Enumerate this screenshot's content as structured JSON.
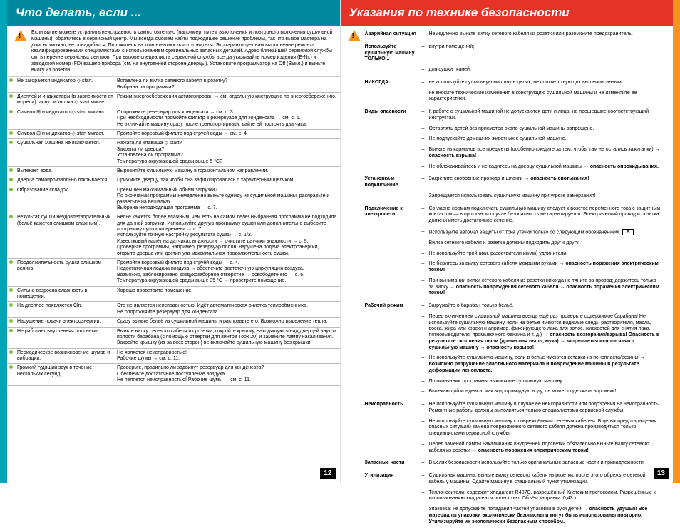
{
  "left": {
    "title": "Что делать, если ...",
    "intro": "Если вы не можете устранить неисправность самостоятельно (например, путем выключения и повторного включения сушильной машины), обратитесь в сервисный центр. Мы всегда сможем найти подходящее решение проблемы, так что вызов мастера на дом, возможно, не понадобится. Положитесь на компетентность изготовителя. Это гарантирует вам выполнение ремонта квалифицированными специалистами с использованием оригинальных запасных деталей. Адрес ближайшей сервисной службы см. в перечне сервисных центров. При вызове специалиста сервисной службы всегда указывайте номер изделия (E-Nr.) и заводской номер (FD) вашего прибора (см. на внутренней стороне дверцы). Установите программатор на Off (Выкл.) и выньте вилку из розетки.",
    "rows": [
      {
        "p": "Не загорается индикатор ◇ start.",
        "s": "Вставлена ли вилка сетевого кабеля в розетку?\nВыбрана ли программа?"
      },
      {
        "p": "Дисплей и индикаторы (в зависимости от модели) гаснут и кнопка ◇ start мигает.",
        "s": "Режим энергосбережения активизирован → см. отдельную инструкцию по энергосбережению."
      },
      {
        "p": "Символ ⊞ и индикатор ◇ start мигают.",
        "s": "Опорожните резервуар для конденсата → см. с. 3.\nПри необходимости промойте фильтр в резервуаре для конденсата → см. с. 6.\nНе включайте машину сразу после транспортировки: дайте ей постоять два часа."
      },
      {
        "p": "Символ ⊟ и индикатор ◇ start мигает.",
        "s": "Промойте ворсовый фильтр под струей воды → см. с. 4."
      },
      {
        "p": "Сушильная машина не включается.",
        "s": "Нажата ли клавиша ◇ start?\nЗакрыта ли дверца?\nУстановлена ли программа?\nТемпература окружающей среды выше 5 °C?"
      },
      {
        "p": "Вытекает вода.",
        "s": "Выровняйте сушильную машину в горизонтальном направлении."
      },
      {
        "p": "Дверца самопроизвольно открывается.",
        "s": "Прижмите дверцу, так чтобы она зафиксировалась с характерным щелчком."
      },
      {
        "p": "Образование складок.",
        "s": "Превышен максимальный объём загрузки?\nПо окончании программы немедленно выньте одежду из сушильной машины, расправьте и развесьте на вешалках.\nВыбрана неподходящая программа → с. 7."
      },
      {
        "p": "Результат сушки неудовлетворительный (бельё кажется слишком влажным).",
        "s": "Бельё кажется более влажным, чем есть на самом деле! Выбранная программа не подходила для данной загрузки. Используйте другую программу сушки или дополнительно выберите программу сушки по времени → с. 7.\nИспользуйте точную настройку результата сушки → с. 1/2.\nИзвестковый налёт на датчиках влажности → очистите датчики влажности → с. 9.\nПроверьте программы, например, резервуар полон, нарушена подача электроэнергии, открыта дверца или достигнута максимальная продолжительность сушки."
      },
      {
        "p": "Продолжительность сушки слишком велика.",
        "s": "Промойте ворсовый фильтр под струёй воды → с. 4.\nНедостаточная подача воздуха → обеспечьте достаточную циркуляцию воздуха.\nВозможно, заблокировано воздухозаборное отверстие → освободите его → с. 6.\nТемпература окружающей среды выше 35 °C → проветрите помещение."
      },
      {
        "p": "Сильно возросла влажность в помещении.",
        "s": "Хорошо проветрите помещение."
      },
      {
        "p": "На дисплее появляется Cln.",
        "s": "Это не является неисправностью! Идёт автоматическая очистка теплообменника.\nНе опорожняйте резервуар для конденсата."
      },
      {
        "p": "Нарушение подачи электроэнергии.",
        "s": "Сразу выньте бельё из сушильной машины и расправьте его. Возможно выделение тепла."
      },
      {
        "p": "Не работает внутренняя подсветка.",
        "s": "Выньте вилку сетевого кабеля из розетки, откройте крышку, находящуюся над дверцей внутри полости барабана (с помощью отвёртки для винтов Торх 20) и замените лампу накаливания. Закройте крышку (из-за всех сторон) не включайте сушильную машину без крышки!"
      },
      {
        "p": "Периодическое возникновение шумов и вибрации.",
        "s": "Не является неисправностью!\nРабочие шумы → см. с. 11."
      },
      {
        "p": "Громкий гудящий звук в течение нескольких секунд.",
        "s": "Проверьте, правильно ли задвинут резервуар для конденсата?\nОбеспечьте достаточное поступление воздуха.\nНе является неисправностью! Рабочие шумы → см. с. 11."
      }
    ],
    "pageNum": "12"
  },
  "right": {
    "title": "Указания по технике безопасности",
    "sections": [
      {
        "label": "Аварийная ситуация",
        "items": [
          "Немедленно выньте вилку сетевого кабеля из розетки или разомкните предохранитель."
        ]
      },
      {
        "label": "Используйте сушильную машину ТОЛЬКО...",
        "items": [
          "внутри помещений;",
          "для сушки тканей."
        ]
      },
      {
        "label": "НИКОГДА...",
        "items": [
          "не используйте сушильную машину в целях, не соответствующих вышеописанным;",
          "не вносите технические изменения в конструкцию сушильной машины и не изменяйте её характеристики."
        ]
      },
      {
        "label": "Виды опасности",
        "items": [
          "К работе с сушильной машиной не допускаются дети и лица, не прошедшие соответствующий инструктаж.",
          "Оставлять детей без присмотра около сушильной машины запрещено.",
          "Не подпускайте домашних животных к сушильной машине.",
          "Выньте из карманов все предметы (особенно следите за тем, чтобы там не остались зажигалки) → опасность взрыва!",
          "Не облокачивайтесь и не садитесь на дверцу сушильной машины → опасность опрокидывания."
        ]
      },
      {
        "label": "Установка и подключение",
        "items": [
          "Закрепите свободные провода и шланги → опасность спотыкания!",
          "Запрещается использовать сушильную машину при угрозе замерзания!"
        ]
      },
      {
        "label": "Подключение к электросети",
        "items": [
          "Согласно нормам подключать сушильную машину следует к розетке переменного тока с защитным контактом — в противном случае безопасность не гарантируется. Электрический провод и розетка должны иметь достаточное сечение.",
          "Используйте автомат защиты от тока утечки только со следующим обозначением:",
          "Вилка сетевого кабеля и розетка должны подходить друг к другу.",
          "Не используйте тройники, разветвители и(или) удлинители.",
          "Не беритесь за вилку сетевого кабеля мокрыми руками → опасность поражения электрическим током!",
          "При вынимании вилки сетевого кабеля из розетки никогда не тяните за провод; держитесь только за вилку → опасность повреждения сетевого кабеля → опасность поражения электрическим током!"
        ]
      },
      {
        "label": "Рабочий режим",
        "items": [
          "Загружайте в барабан только бельё.",
          "Перед включением сушильной машины всегда ещё раз проверьте содержимое барабана! Не используйте сушильную машину, если на белье имеются видимые следы растворителя, масла, воска, жира или краски (например, фиксирующего лака для волос, жидкостей для снятия лака, пятновыводителя, промывочного бензина и т. д.) → опасность возгорания/взрыва! Опасность в результате скопления пыли (древесная пыль, мука) → запрещается использовать сушильную машину → опасность взрыва!",
          "Не используйте сушильную машину, если в белье имеются вставки из пенопласта/резины → возможно разрушение эластичного материала и повреждение машины в результате деформации пенопласта.",
          "По окончании программы выключите сушильную машину.",
          "Вытекающий конденсат как водопроводную воду, он может содержать ворсинки!"
        ]
      },
      {
        "label": "Неисправность",
        "items": [
          "Не используйте сушильную машину в случае её неисправности или подозрения на неисправность. Ремонтные работы должны выполняться только специалистами сервисной службы.",
          "Не используйте сушильную машину с повреждённым сетевым кабелем. В целях предотвращения опасных ситуаций замена повреждённого сетевого кабеля должна производиться только специалистами сервисной службы.",
          "Перед заменой лампы накаливания внутренней подсветки обязательно выньте вилку сетевого кабеля из розетки → опасность поражения электрическим током!"
        ]
      },
      {
        "label": "Запасные части",
        "items": [
          "В целях безопасности используйте только оригинальные запасные части и принадлежности."
        ]
      },
      {
        "label": "Утилизация",
        "items": [
          "Сушильная машина: выньте вилку сетевого кабеля из розетки, после этого обрежьте сетевой кабель у машины. Сдайте машину в специальный пункт утилизации.",
          "Теплоносители: содержит хладагент R407C, разрешённый Киотским протоколом. Разрешённые к использованию хладагенты полностью. Объём заправки: 0,43 кг.",
          "Упаковка: не допускайте попадания частей упаковки в руки детей → опасность удушья! Все материалы упаковки экологически безопасны и могут быть использованы повторно. Утилизируйте их экологически безопасным способом."
        ]
      }
    ],
    "pageNum": "13"
  }
}
